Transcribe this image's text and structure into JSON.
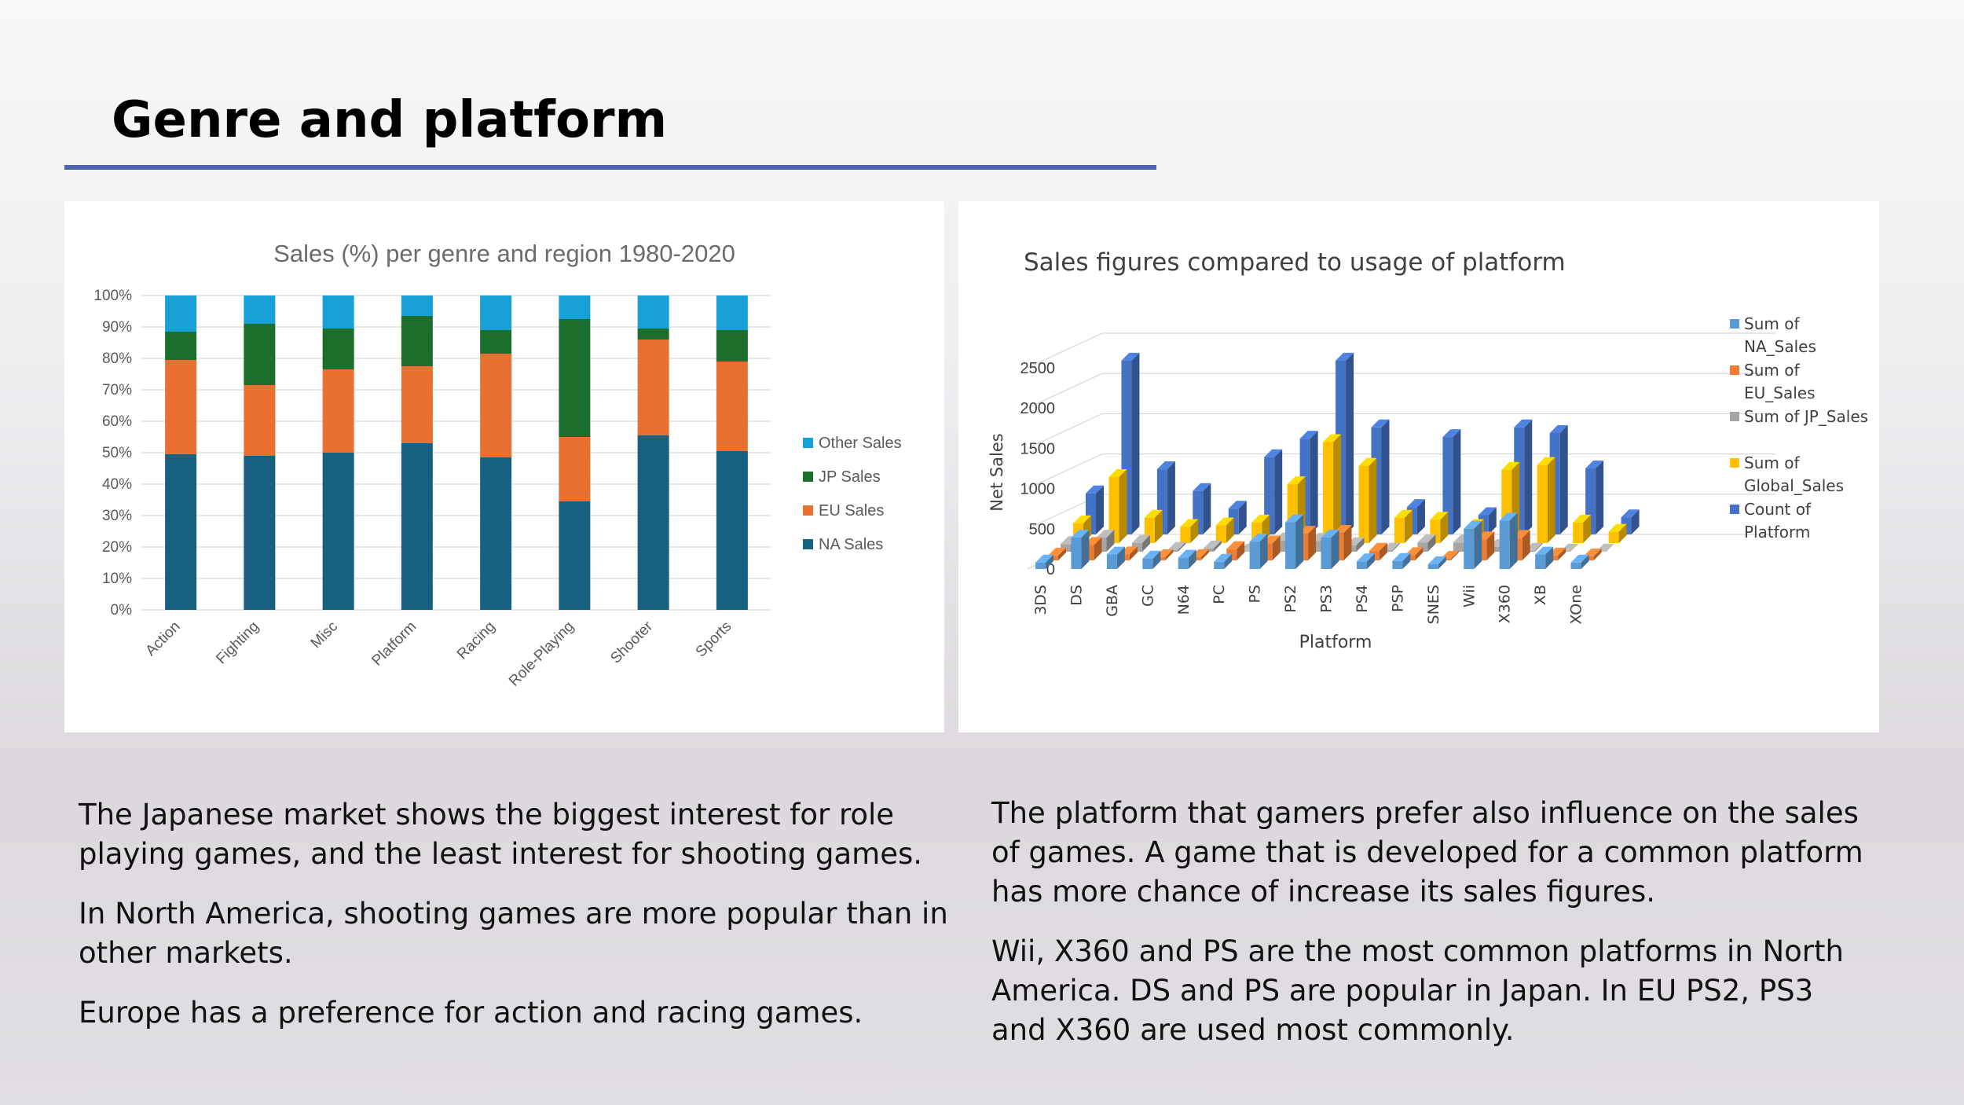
{
  "slide": {
    "title": "Genre and platform",
    "colors": {
      "accent_rule": "#4a65aa"
    }
  },
  "text": {
    "left": [
      "The Japanese market shows the biggest interest for role playing games, and the least interest for shooting games.",
      "In North America, shooting games are more popular than in other markets.",
      "Europe has a preference for action and racing games."
    ],
    "right": [
      "The platform that gamers prefer also influence on the sales of games. A game that is developed for a common platform has more chance of increase its sales figures.",
      "Wii, X360 and PS are the most common platforms in North America. DS and PS are popular in Japan. In EU PS2, PS3 and X360 are used most commonly."
    ]
  },
  "chart_data": [
    {
      "type": "bar",
      "stacked": true,
      "percent": true,
      "title": "Sales (%) per genre and region 1980-2020",
      "xlabel": "",
      "ylabel": "",
      "ylim": [
        0,
        100
      ],
      "yticks": [
        "0%",
        "10%",
        "20%",
        "30%",
        "40%",
        "50%",
        "60%",
        "70%",
        "80%",
        "90%",
        "100%"
      ],
      "categories": [
        "Action",
        "Fighting",
        "Misc",
        "Platform",
        "Racing",
        "Role-Playing",
        "Shooter",
        "Sports"
      ],
      "series": [
        {
          "name": "NA Sales",
          "color": "#17607f",
          "values": [
            49.5,
            49,
            50,
            53,
            48.5,
            34.5,
            55.5,
            50.5
          ]
        },
        {
          "name": "EU Sales",
          "color": "#e97031",
          "values": [
            30,
            22.5,
            26.5,
            24.5,
            33,
            20.5,
            30.5,
            28.5
          ]
        },
        {
          "name": "JP Sales",
          "color": "#1b6e2b",
          "values": [
            9,
            19.5,
            13,
            16,
            7.5,
            37.5,
            3.5,
            10
          ]
        },
        {
          "name": "Other Sales",
          "color": "#16a0d6",
          "values": [
            11.5,
            9,
            10.5,
            6.5,
            11,
            7.5,
            10.5,
            11
          ]
        }
      ],
      "legend_order": [
        "Other Sales",
        "JP Sales",
        "EU Sales",
        "NA Sales"
      ],
      "legend": "right"
    },
    {
      "type": "bar",
      "style": "3d-clustered",
      "title": "Sales figures compared to usage of platform",
      "xlabel": "Platform",
      "ylabel": "Net Sales",
      "ylim": [
        0,
        2500
      ],
      "yticks": [
        "0",
        "500",
        "1000",
        "1500",
        "2000",
        "2500"
      ],
      "categories": [
        "3DS",
        "DS",
        "GBA",
        "GC",
        "N64",
        "PC",
        "PS",
        "PS2",
        "PS3",
        "PS4",
        "PSP",
        "SNES",
        "Wii",
        "X360",
        "XB",
        "XOne"
      ],
      "series": [
        {
          "name": "Sum of NA_Sales",
          "color": "#5b9bd5",
          "values": [
            80,
            390,
            180,
            130,
            140,
            90,
            340,
            580,
            390,
            95,
            100,
            60,
            500,
            600,
            180,
            80
          ]
        },
        {
          "name": "Sum of EU_Sales",
          "color": "#ed7d31",
          "values": [
            60,
            190,
            75,
            40,
            40,
            140,
            210,
            330,
            340,
            120,
            65,
            20,
            260,
            280,
            60,
            50
          ]
        },
        {
          "name": "Sum of JP_Sales",
          "color": "#a5a5a5",
          "values": [
            95,
            175,
            110,
            22,
            40,
            2,
            140,
            135,
            80,
            15,
            115,
            115,
            60,
            12,
            2,
            1
          ]
        },
        {
          "name": "Sum of Global_Sales",
          "color": "#ffc000",
          "values": [
            245,
            820,
            315,
            200,
            220,
            255,
            730,
            1255,
            960,
            315,
            290,
            200,
            910,
            970,
            255,
            140
          ]
        },
        {
          "name": "Count of Platform",
          "color": "#4472c4",
          "values": [
            510,
            2160,
            810,
            540,
            320,
            960,
            1190,
            2160,
            1330,
            340,
            1210,
            239,
            1330,
            1260,
            820,
            213
          ]
        }
      ],
      "legend": "right"
    }
  ]
}
